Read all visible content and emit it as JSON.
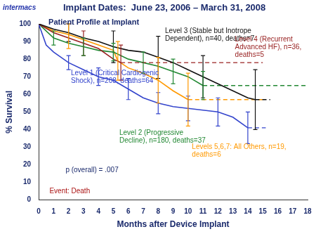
{
  "chart_data": {
    "type": "line",
    "brand": "intermacs",
    "title": "Implant Dates:  June 23, 2006 – March 31, 2008",
    "subtitle": "Patient Profile at Implant",
    "x_label": "Months after Device Implant",
    "y_label": "% Survival",
    "xlim": [
      0,
      18
    ],
    "xticks": [
      0,
      1,
      2,
      3,
      4,
      5,
      6,
      7,
      8,
      9,
      10,
      11,
      12,
      13,
      14,
      15,
      16,
      17,
      18
    ],
    "ylim": [
      0,
      100
    ],
    "yticks": [
      0,
      10,
      20,
      30,
      40,
      50,
      60,
      70,
      80,
      90,
      100
    ],
    "grid": false,
    "annotations": [
      "p (overall) = .007",
      "Event: Death"
    ],
    "series": [
      {
        "name": "Level 3 (Stable but Inotrope Dependent), n=40, deaths=7",
        "color": "#111111",
        "x": [
          0,
          1,
          2,
          3,
          4,
          5,
          6,
          7,
          8,
          9,
          10,
          11,
          12,
          13,
          14,
          14.5
        ],
        "values": [
          100,
          97,
          95,
          92,
          90,
          87,
          85,
          84,
          81,
          78,
          74,
          70,
          66,
          62,
          58,
          57
        ],
        "error_bars": [
          {
            "x": 2,
            "low": 90,
            "high": 100
          },
          {
            "x": 5,
            "low": 78,
            "high": 96
          },
          {
            "x": 8,
            "low": 69,
            "high": 93
          },
          {
            "x": 11,
            "low": 58,
            "high": 82
          },
          {
            "x": 14.5,
            "low": 40,
            "high": 74
          }
        ],
        "projection": {
          "x": [
            14.5,
            15.5
          ],
          "values": [
            57,
            57
          ]
        }
      },
      {
        "name": "Level 4 (Recurrent Advanced HF), n=36, deaths=5",
        "color": "#992222",
        "x": [
          0,
          1,
          2,
          3,
          4,
          5,
          5.5
        ],
        "values": [
          100,
          95,
          92,
          89,
          86,
          80,
          78
        ],
        "error_bars": [
          {
            "x": 3,
            "low": 82,
            "high": 96
          },
          {
            "x": 5.5,
            "low": 68,
            "high": 88
          }
        ],
        "projection": {
          "x": [
            5.5,
            15
          ],
          "values": [
            78,
            78
          ]
        }
      },
      {
        "name": "Level 1 (Critical Cardiogenic Shock), n=208, deaths=64",
        "color": "#3344cc",
        "x": [
          0,
          0.5,
          1,
          2,
          3,
          4,
          5,
          6,
          7,
          8,
          9,
          10,
          11,
          12,
          13,
          14
        ],
        "values": [
          100,
          88,
          84,
          78,
          74,
          70,
          68,
          63,
          58,
          55,
          53,
          52,
          51,
          50,
          47,
          41
        ],
        "error_bars": [
          {
            "x": 2,
            "low": 74,
            "high": 82
          },
          {
            "x": 4,
            "low": 65,
            "high": 75
          },
          {
            "x": 6,
            "low": 57,
            "high": 69
          },
          {
            "x": 8,
            "low": 49,
            "high": 61
          },
          {
            "x": 10,
            "low": 45,
            "high": 59
          },
          {
            "x": 12,
            "low": 42,
            "high": 58
          },
          {
            "x": 14,
            "low": 32,
            "high": 50
          }
        ],
        "projection": {
          "x": [
            14,
            15.2
          ],
          "values": [
            41,
            41
          ]
        }
      },
      {
        "name": "Level 2 (Progressive Decline), n=180, deaths=37",
        "color": "#228833",
        "x": [
          0,
          1,
          2,
          3,
          4,
          5,
          6,
          7,
          8,
          9,
          10,
          11
        ],
        "values": [
          100,
          92,
          89,
          87,
          85,
          84,
          80,
          78,
          76,
          73,
          70,
          65
        ],
        "error_bars": [
          {
            "x": 1,
            "low": 88,
            "high": 96
          },
          {
            "x": 3,
            "low": 82,
            "high": 92
          },
          {
            "x": 5,
            "low": 79,
            "high": 89
          },
          {
            "x": 7,
            "low": 72,
            "high": 84
          },
          {
            "x": 9,
            "low": 66,
            "high": 80
          },
          {
            "x": 11,
            "low": 57,
            "high": 73
          }
        ],
        "projection": {
          "x": [
            11,
            18
          ],
          "values": [
            65,
            65
          ]
        }
      },
      {
        "name": "Levels 5,6,7: All Others, n=19, deaths=6",
        "color": "#ff9900",
        "x": [
          0,
          1,
          2,
          3,
          4,
          5,
          5.3,
          6,
          7,
          8,
          9,
          10
        ],
        "values": [
          100,
          96,
          94,
          91,
          88,
          85,
          79,
          75,
          72,
          68,
          62,
          57
        ],
        "error_bars": [
          {
            "x": 2,
            "low": 86,
            "high": 100
          },
          {
            "x": 5.3,
            "low": 68,
            "high": 90
          },
          {
            "x": 8,
            "low": 55,
            "high": 81
          },
          {
            "x": 10,
            "low": 42,
            "high": 72
          }
        ],
        "projection": {
          "x": [
            10,
            15
          ],
          "values": [
            57,
            57
          ]
        }
      }
    ]
  }
}
